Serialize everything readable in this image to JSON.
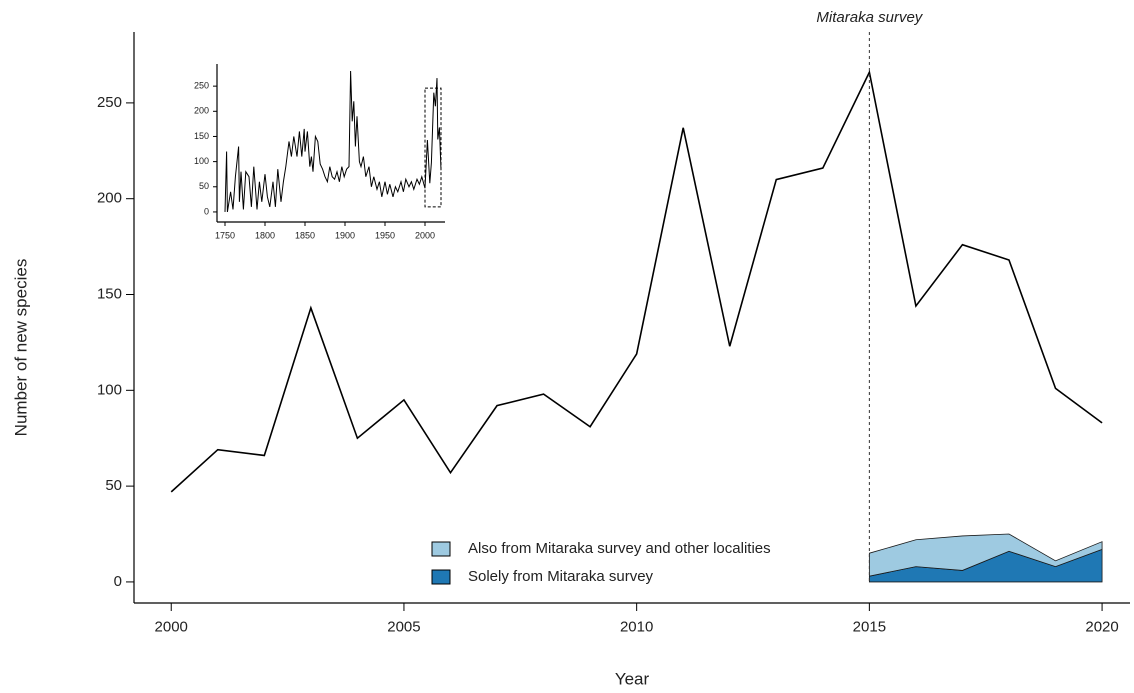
{
  "chart_data": [
    {
      "type": "line",
      "x_label": "Year",
      "y_label": "Number of new species",
      "x": [
        2000,
        2001,
        2002,
        2003,
        2004,
        2005,
        2006,
        2007,
        2008,
        2009,
        2010,
        2011,
        2012,
        2013,
        2014,
        2015,
        2016,
        2017,
        2018,
        2019,
        2020
      ],
      "series": [
        {
          "type": "line",
          "color": "#000000",
          "values": [
            47,
            69,
            66,
            143,
            75,
            95,
            57,
            92,
            98,
            81,
            119,
            237,
            123,
            210,
            216,
            266,
            144,
            176,
            168,
            101,
            83
          ]
        },
        {
          "type": "area",
          "name": "Also from Mitaraka survey and other localities",
          "color": "#9ecae1",
          "values": [
            null,
            null,
            null,
            null,
            null,
            null,
            null,
            null,
            null,
            null,
            null,
            null,
            null,
            null,
            null,
            12,
            14,
            18,
            9,
            3,
            4
          ]
        },
        {
          "type": "area",
          "name": "Solely from Mitaraka survey",
          "color": "#1f78b4",
          "values": [
            null,
            null,
            null,
            null,
            null,
            null,
            null,
            null,
            null,
            null,
            null,
            null,
            null,
            null,
            null,
            3,
            8,
            6,
            16,
            8,
            17
          ]
        }
      ],
      "stacked": true,
      "annotation": {
        "text": "Mitaraka survey",
        "x": 2015
      },
      "xlim": [
        1999.2,
        2020.6
      ],
      "ylim": [
        -11,
        287
      ],
      "xticks": [
        2000,
        2005,
        2010,
        2015,
        2020
      ],
      "yticks": [
        0,
        50,
        100,
        150,
        200,
        250
      ],
      "grid": false,
      "legend": "lower center"
    },
    {
      "type": "line",
      "x": [
        1750,
        1752,
        1753,
        1757,
        1760,
        1763,
        1767,
        1768,
        1770,
        1773,
        1776,
        1780,
        1783,
        1786,
        1790,
        1793,
        1796,
        1800,
        1803,
        1806,
        1810,
        1813,
        1816,
        1820,
        1823,
        1826,
        1830,
        1833,
        1836,
        1840,
        1843,
        1846,
        1849,
        1850,
        1853,
        1856,
        1858,
        1860,
        1863,
        1866,
        1869,
        1872,
        1875,
        1878,
        1881,
        1884,
        1887,
        1890,
        1893,
        1896,
        1899,
        1902,
        1905,
        1907,
        1909,
        1911,
        1913,
        1915,
        1918,
        1920,
        1923,
        1926,
        1930,
        1933,
        1936,
        1940,
        1943,
        1946,
        1950,
        1953,
        1956,
        1960,
        1963,
        1966,
        1970,
        1973,
        1976,
        1980,
        1983,
        1986,
        1990,
        1993,
        1996,
        2000,
        2003,
        2006,
        2008,
        2011,
        2013,
        2015,
        2016,
        2018,
        2020
      ],
      "series": [
        {
          "type": "line",
          "color": "#000000",
          "values": [
            0,
            120,
            0,
            40,
            5,
            70,
            130,
            20,
            80,
            5,
            80,
            70,
            10,
            90,
            5,
            60,
            20,
            75,
            30,
            10,
            60,
            10,
            85,
            20,
            60,
            90,
            140,
            110,
            150,
            110,
            160,
            110,
            165,
            120,
            160,
            90,
            110,
            80,
            150,
            140,
            95,
            85,
            70,
            60,
            90,
            70,
            65,
            80,
            60,
            90,
            70,
            85,
            90,
            280,
            180,
            220,
            130,
            190,
            100,
            90,
            110,
            70,
            90,
            50,
            70,
            45,
            60,
            30,
            60,
            35,
            55,
            30,
            50,
            40,
            60,
            40,
            65,
            50,
            60,
            45,
            65,
            55,
            70,
            47,
            143,
            57,
            98,
            237,
            210,
            266,
            144,
            168,
            83
          ]
        }
      ],
      "highlight": {
        "x": [
          2000,
          2020
        ],
        "y": [
          10,
          246
        ]
      },
      "xlim": [
        1740,
        2025
      ],
      "ylim": [
        -20,
        294
      ],
      "xticks": [
        1750,
        1800,
        1850,
        1900,
        1950,
        2000
      ],
      "yticks": [
        0,
        50,
        100,
        150,
        200,
        250
      ],
      "grid": false
    }
  ]
}
